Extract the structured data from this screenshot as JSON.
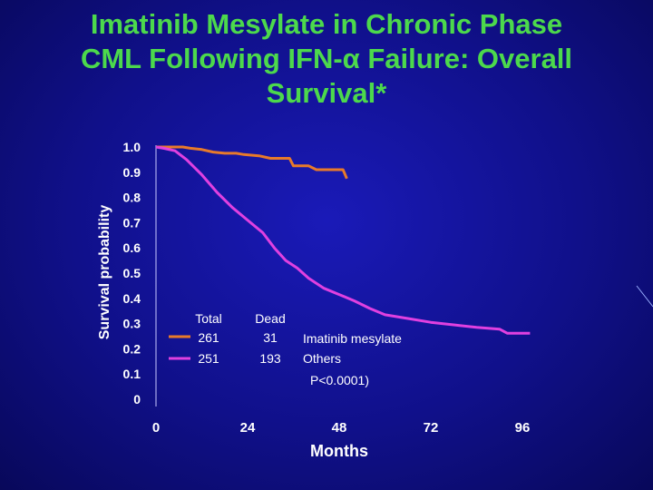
{
  "title_line1": "Imatinib Mesylate in Chronic Phase",
  "title_line2": "CML Following IFN-α Failure: Overall",
  "title_line3": "Survival*",
  "chart_data": {
    "type": "line",
    "xlabel": "Months",
    "ylabel": "Survival probability",
    "xlim": [
      0,
      96
    ],
    "ylim": [
      0,
      1.0
    ],
    "x_ticks": [
      "0",
      "24",
      "48",
      "72",
      "96"
    ],
    "y_ticks": [
      "1.0",
      "0.9",
      "0.8",
      "0.7",
      "0.6",
      "0.5",
      "0.4",
      "0.3",
      "0.2",
      "0.1",
      "0"
    ],
    "grid": false,
    "series": [
      {
        "name": "Imatinib mesylate",
        "color": "#e87a2a",
        "points": [
          [
            0,
            1.0
          ],
          [
            7,
            1.0
          ],
          [
            9,
            0.995
          ],
          [
            12,
            0.99
          ],
          [
            15,
            0.98
          ],
          [
            18,
            0.975
          ],
          [
            21,
            0.975
          ],
          [
            23,
            0.97
          ],
          [
            27,
            0.965
          ],
          [
            30,
            0.955
          ],
          [
            35,
            0.955
          ],
          [
            36,
            0.925
          ],
          [
            40,
            0.925
          ],
          [
            42,
            0.91
          ],
          [
            49,
            0.91
          ],
          [
            50,
            0.875
          ]
        ]
      },
      {
        "name": "Others",
        "color": "#e040e0",
        "points": [
          [
            0,
            1.0
          ],
          [
            2,
            0.995
          ],
          [
            5,
            0.985
          ],
          [
            8,
            0.95
          ],
          [
            12,
            0.89
          ],
          [
            16,
            0.82
          ],
          [
            20,
            0.76
          ],
          [
            24,
            0.71
          ],
          [
            28,
            0.66
          ],
          [
            31,
            0.6
          ],
          [
            34,
            0.55
          ],
          [
            37,
            0.52
          ],
          [
            40,
            0.48
          ],
          [
            44,
            0.44
          ],
          [
            48,
            0.415
          ],
          [
            52,
            0.39
          ],
          [
            56,
            0.36
          ],
          [
            60,
            0.335
          ],
          [
            66,
            0.32
          ],
          [
            72,
            0.305
          ],
          [
            78,
            0.295
          ],
          [
            84,
            0.285
          ],
          [
            90,
            0.278
          ],
          [
            92,
            0.262
          ],
          [
            98,
            0.262
          ]
        ]
      }
    ],
    "legend": {
      "placement": "bottom-center",
      "header_total": "Total",
      "header_dead": "Dead",
      "rows": [
        {
          "total": "261",
          "dead": "31",
          "label": "Imatinib mesylate"
        },
        {
          "total": "251",
          "dead": "193",
          "label": "Others"
        }
      ],
      "pvalue_text": "P<0.0001)"
    }
  }
}
